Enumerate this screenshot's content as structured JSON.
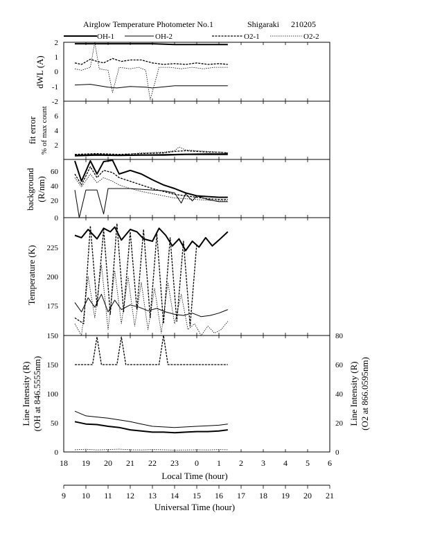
{
  "header": {
    "title": "Airglow Temperature Photometer No.1",
    "site": "Shigaraki",
    "date": "210205"
  },
  "legend": [
    {
      "name": "OH-1",
      "style": "solid-thick"
    },
    {
      "name": "OH-2",
      "style": "solid-thin"
    },
    {
      "name": "O2-1",
      "style": "dashed"
    },
    {
      "name": "O2-2",
      "style": "dotted"
    }
  ],
  "colors": {
    "ink": "#000000",
    "background": "#ffffff"
  },
  "axes": {
    "local_time_label": "Local Time (hour)",
    "universal_time_label": "Universal Time (hour)",
    "local_ticks": [
      "18",
      "19",
      "20",
      "21",
      "22",
      "23",
      "0",
      "1",
      "2",
      "3",
      "4",
      "5",
      "6"
    ],
    "universal_ticks": [
      "9",
      "10",
      "11",
      "12",
      "13",
      "14",
      "15",
      "16",
      "17",
      "18",
      "19",
      "20",
      "21"
    ]
  },
  "chart_data": [
    {
      "panel": "dWL",
      "type": "line",
      "ylabel": "dWL (A)",
      "ylim": [
        -2,
        2
      ],
      "yticks": [
        "-2",
        "-1",
        "0",
        "1",
        "2"
      ],
      "x_unit": "local time (hour)",
      "series": [
        {
          "name": "OH-1",
          "x": [
            18.5,
            20,
            21,
            22,
            23,
            24,
            25.4
          ],
          "y": [
            1.9,
            1.9,
            1.9,
            1.9,
            1.85,
            1.85,
            1.85
          ]
        },
        {
          "name": "OH-2",
          "x": [
            18.5,
            19.2,
            20,
            20.4,
            21,
            21.7,
            22,
            23,
            24,
            25.4
          ],
          "y": [
            -0.9,
            -0.85,
            -1.05,
            -1.1,
            -1.0,
            -1.05,
            -1.1,
            -0.95,
            -0.95,
            -0.95
          ]
        },
        {
          "name": "O2-1",
          "x": [
            18.5,
            18.8,
            19.2,
            19.5,
            19.8,
            20.2,
            20.6,
            21,
            21.5,
            22,
            22.5,
            23,
            23.5,
            24,
            24.5,
            25,
            25.4
          ],
          "y": [
            0.6,
            0.5,
            0.85,
            0.7,
            0.6,
            0.9,
            0.7,
            0.8,
            0.8,
            0.6,
            0.5,
            0.55,
            0.5,
            0.6,
            0.5,
            0.55,
            0.5
          ]
        },
        {
          "name": "O2-2",
          "x": [
            18.5,
            18.8,
            19.2,
            19.4,
            19.6,
            20,
            20.2,
            20.5,
            21,
            21.4,
            21.7,
            21.9,
            22.3,
            22.8,
            23.3,
            23.8,
            24.3,
            24.8,
            25.4
          ],
          "y": [
            0.2,
            0.1,
            0.3,
            2.0,
            0.2,
            0.1,
            -1.4,
            0.3,
            0.2,
            0.3,
            0.1,
            -1.9,
            0.3,
            0.3,
            0.2,
            0.3,
            0.2,
            0.3,
            0.3
          ]
        }
      ]
    },
    {
      "panel": "fit error",
      "type": "line",
      "ylabel": "fit error",
      "ylabel2": "% of max count",
      "ylim": [
        0,
        8
      ],
      "yticks": [
        "0",
        "2",
        "4",
        "6",
        "8"
      ],
      "x_unit": "local time (hour)",
      "series": [
        {
          "name": "OH-1",
          "x": [
            18.5,
            19.5,
            20.5,
            21.5,
            22.5,
            23.5,
            24.5,
            25.4
          ],
          "y": [
            0.5,
            0.6,
            0.55,
            0.6,
            0.6,
            0.7,
            0.7,
            0.7
          ]
        },
        {
          "name": "OH-2",
          "x": [
            18.5,
            19.5,
            20.5,
            21.5,
            22.5,
            23.5,
            24.5,
            25.4
          ],
          "y": [
            0.6,
            0.7,
            0.6,
            0.65,
            0.7,
            0.75,
            0.8,
            0.8
          ]
        },
        {
          "name": "O2-1",
          "x": [
            18.5,
            19.5,
            20.5,
            21.5,
            22.5,
            23,
            23.5,
            24,
            24.5,
            25,
            25.4
          ],
          "y": [
            0.7,
            0.8,
            0.7,
            0.8,
            0.9,
            1.1,
            1.2,
            1.1,
            1.0,
            1.0,
            0.9
          ]
        },
        {
          "name": "O2-2",
          "x": [
            18.5,
            19.5,
            20.5,
            21.5,
            22.5,
            23,
            23.2,
            23.5,
            24,
            24.5,
            25,
            25.4
          ],
          "y": [
            0.5,
            0.7,
            0.6,
            0.9,
            1.0,
            1.2,
            1.7,
            1.3,
            1.2,
            1.1,
            1.0,
            0.9
          ]
        }
      ]
    },
    {
      "panel": "background",
      "type": "line",
      "ylabel": "background",
      "ylabel2": "(R/nm)",
      "ylim": [
        0,
        80
      ],
      "yticks": [
        "0",
        "20",
        "40",
        "60"
      ],
      "x_unit": "local time (hour)",
      "series": [
        {
          "name": "OH-1",
          "x": [
            18.5,
            18.8,
            19.2,
            19.5,
            19.8,
            20.2,
            20.5,
            21,
            21.5,
            22,
            22.5,
            23,
            23.5,
            24,
            24.5,
            25,
            25.4
          ],
          "y": [
            78,
            50,
            78,
            60,
            77,
            79,
            60,
            65,
            60,
            52,
            45,
            40,
            34,
            30,
            29,
            28,
            28
          ]
        },
        {
          "name": "OH-2",
          "x": [
            18.5,
            18.7,
            19,
            19.5,
            19.8,
            20,
            20.3,
            21,
            21.5,
            22,
            22.5,
            23,
            23.3,
            23.5,
            23.8,
            24,
            24.5,
            25,
            25.4
          ],
          "y": [
            38,
            0,
            38,
            38,
            5,
            40,
            40,
            40,
            39,
            38,
            37,
            34,
            20,
            33,
            23,
            30,
            25,
            22,
            22
          ]
        },
        {
          "name": "O2-1",
          "x": [
            18.5,
            18.8,
            19.2,
            19.5,
            19.8,
            20.2,
            20.5,
            21,
            21.5,
            22,
            22.5,
            23,
            23.5,
            24,
            24.5,
            25,
            25.4
          ],
          "y": [
            60,
            45,
            70,
            55,
            65,
            62,
            55,
            50,
            45,
            40,
            36,
            32,
            30,
            28,
            26,
            25,
            25
          ]
        },
        {
          "name": "O2-2",
          "x": [
            18.5,
            18.8,
            19.2,
            19.5,
            19.8,
            20.2,
            20.5,
            21,
            21.5,
            22,
            22.5,
            23,
            23.5,
            24,
            24.5,
            25,
            25.4
          ],
          "y": [
            55,
            42,
            60,
            48,
            55,
            50,
            45,
            40,
            36,
            33,
            30,
            27,
            26,
            25,
            24,
            23,
            23
          ]
        }
      ]
    },
    {
      "panel": "temperature",
      "type": "line",
      "ylabel": "Temperature (K)",
      "ylim": [
        150,
        250
      ],
      "yticks": [
        "150",
        "175",
        "200",
        "225"
      ],
      "x_unit": "local time (hour)",
      "series": [
        {
          "name": "OH-1",
          "x": [
            18.5,
            18.8,
            19.1,
            19.3,
            19.5,
            19.8,
            20.1,
            20.3,
            20.6,
            21,
            21.3,
            21.6,
            22,
            22.3,
            22.6,
            22.9,
            23.2,
            23.5,
            23.8,
            24.1,
            24.4,
            24.7,
            25,
            25.4
          ],
          "y": [
            235,
            233,
            240,
            236,
            232,
            241,
            238,
            242,
            231,
            240,
            238,
            232,
            230,
            241,
            235,
            226,
            232,
            222,
            230,
            225,
            233,
            226,
            231,
            238
          ]
        },
        {
          "name": "OH-2",
          "x": [
            18.5,
            18.8,
            19.1,
            19.4,
            19.7,
            20,
            20.3,
            20.6,
            21,
            21.4,
            21.8,
            22.2,
            22.6,
            23,
            23.4,
            23.8,
            24.2,
            24.6,
            25,
            25.4
          ],
          "y": [
            178,
            170,
            182,
            174,
            185,
            170,
            180,
            172,
            176,
            174,
            171,
            173,
            170,
            168,
            167,
            169,
            166,
            167,
            169,
            172
          ]
        },
        {
          "name": "O2-1",
          "x": [
            18.5,
            18.9,
            19.2,
            19.5,
            19.8,
            20.1,
            20.4,
            20.7,
            21,
            21.3,
            21.6,
            21.9,
            22.2,
            22.5,
            22.8,
            23.1,
            23.4,
            23.7,
            24
          ],
          "y": [
            165,
            160,
            243,
            175,
            240,
            168,
            245,
            170,
            238,
            172,
            240,
            165,
            236,
            160,
            233,
            162,
            230,
            158,
            228
          ]
        },
        {
          "name": "O2-2",
          "x": [
            18.5,
            18.8,
            19.1,
            19.4,
            19.7,
            20,
            20.3,
            20.6,
            20.9,
            21.2,
            21.5,
            21.8,
            22.1,
            22.4,
            22.7,
            23,
            23.3,
            23.6,
            23.9,
            24.2,
            24.5,
            24.8,
            25.1,
            25.4
          ],
          "y": [
            160,
            150,
            200,
            165,
            210,
            155,
            205,
            160,
            200,
            158,
            195,
            155,
            190,
            152,
            195,
            160,
            185,
            155,
            160,
            150,
            158,
            152,
            155,
            162
          ]
        }
      ]
    },
    {
      "panel": "line intensity",
      "type": "line",
      "ylabel": "Line Intensity (R)",
      "ylabel2": "(OH at 846.5555nm)",
      "ylabel_right": "Line Intensity (R)",
      "ylabel_right2": "(O2 at 866.0595nm)",
      "ylim": [
        0,
        200
      ],
      "yticks": [
        "0",
        "50",
        "100",
        "150"
      ],
      "ylim_right": [
        0,
        80
      ],
      "yticks_right": [
        "0",
        "20",
        "40",
        "60",
        "80"
      ],
      "x_unit": "local time (hour)",
      "series": [
        {
          "name": "OH-1",
          "axis": "left",
          "x": [
            18.5,
            19,
            19.5,
            20,
            20.5,
            21,
            21.5,
            22,
            22.5,
            23,
            23.5,
            24,
            24.5,
            25,
            25.4
          ],
          "y": [
            52,
            48,
            47,
            44,
            42,
            38,
            36,
            34,
            34,
            33,
            34,
            35,
            35,
            36,
            38
          ]
        },
        {
          "name": "OH-2",
          "axis": "left",
          "x": [
            18.5,
            19,
            19.5,
            20,
            20.5,
            21,
            21.5,
            22,
            22.5,
            23,
            23.5,
            24,
            24.5,
            25,
            25.4
          ],
          "y": [
            70,
            62,
            60,
            58,
            55,
            52,
            48,
            44,
            43,
            42,
            43,
            44,
            45,
            46,
            48
          ]
        },
        {
          "name": "O2-1",
          "axis": "right",
          "x": [
            18.5,
            19.3,
            19.5,
            19.7,
            20,
            20.4,
            20.6,
            20.8,
            21.5,
            22.3,
            22.5,
            22.7,
            23,
            24,
            25.4
          ],
          "y": [
            60,
            60,
            79,
            60,
            60,
            60,
            79,
            60,
            60,
            60,
            80,
            60,
            60,
            60,
            60
          ]
        },
        {
          "name": "O2-2",
          "axis": "right",
          "x": [
            18.5,
            19,
            19.5,
            20,
            20.5,
            21,
            21.5,
            22,
            22.5,
            23,
            23.5,
            24,
            24.5,
            25,
            25.4
          ],
          "y": [
            1.5,
            1.8,
            1.4,
            1.6,
            1.9,
            1.5,
            1.4,
            1.6,
            1.5,
            1.3,
            1.4,
            1.5,
            1.4,
            1.6,
            1.5
          ]
        }
      ]
    }
  ]
}
